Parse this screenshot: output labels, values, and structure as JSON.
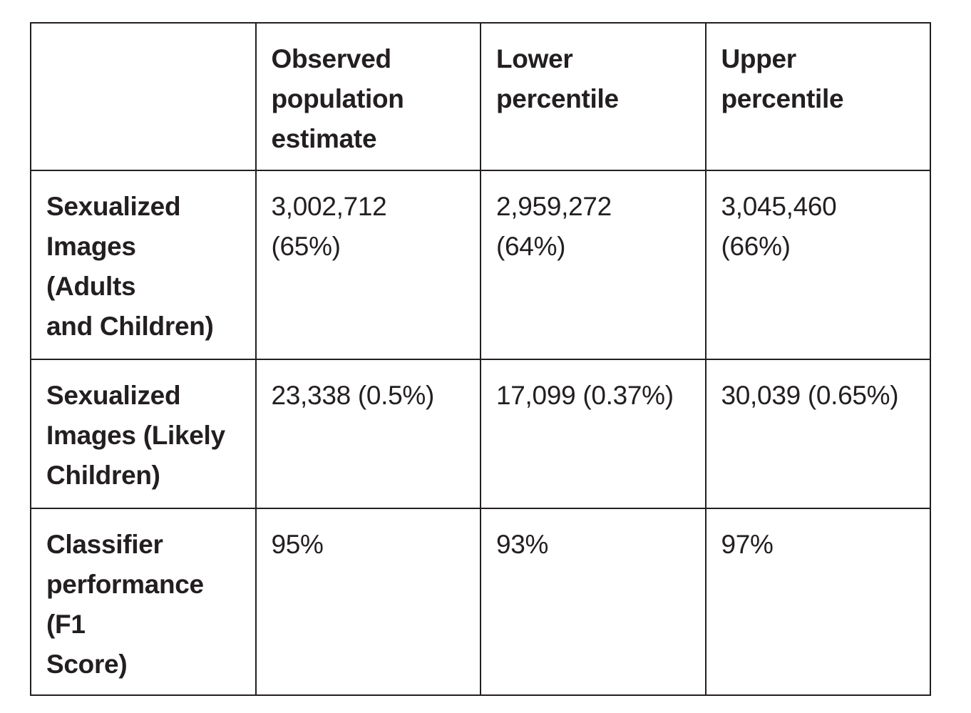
{
  "page": {
    "background_color": "#ffffff"
  },
  "table": {
    "border_color": "#231f20",
    "text_color": "#231f20",
    "headers": [
      "",
      "Observed\npopulation\nestimate",
      "Lower\npercentile",
      "Upper\npercentile"
    ],
    "rows": [
      {
        "label": "Sexualized\nImages\n(Adults\nand Children)",
        "values": [
          "3,002,712\n(65%)",
          "2,959,272\n(64%)",
          "3,045,460\n(66%)"
        ]
      },
      {
        "label": "Sexualized\nImages (Likely\nChildren)",
        "values": [
          "23,338 (0.5%)",
          "17,099 (0.37%)",
          "30,039 (0.65%)"
        ]
      },
      {
        "label": "Classifier\nperformance\n(F1\nScore)",
        "values": [
          "95%",
          "93%",
          "97%"
        ]
      }
    ]
  }
}
